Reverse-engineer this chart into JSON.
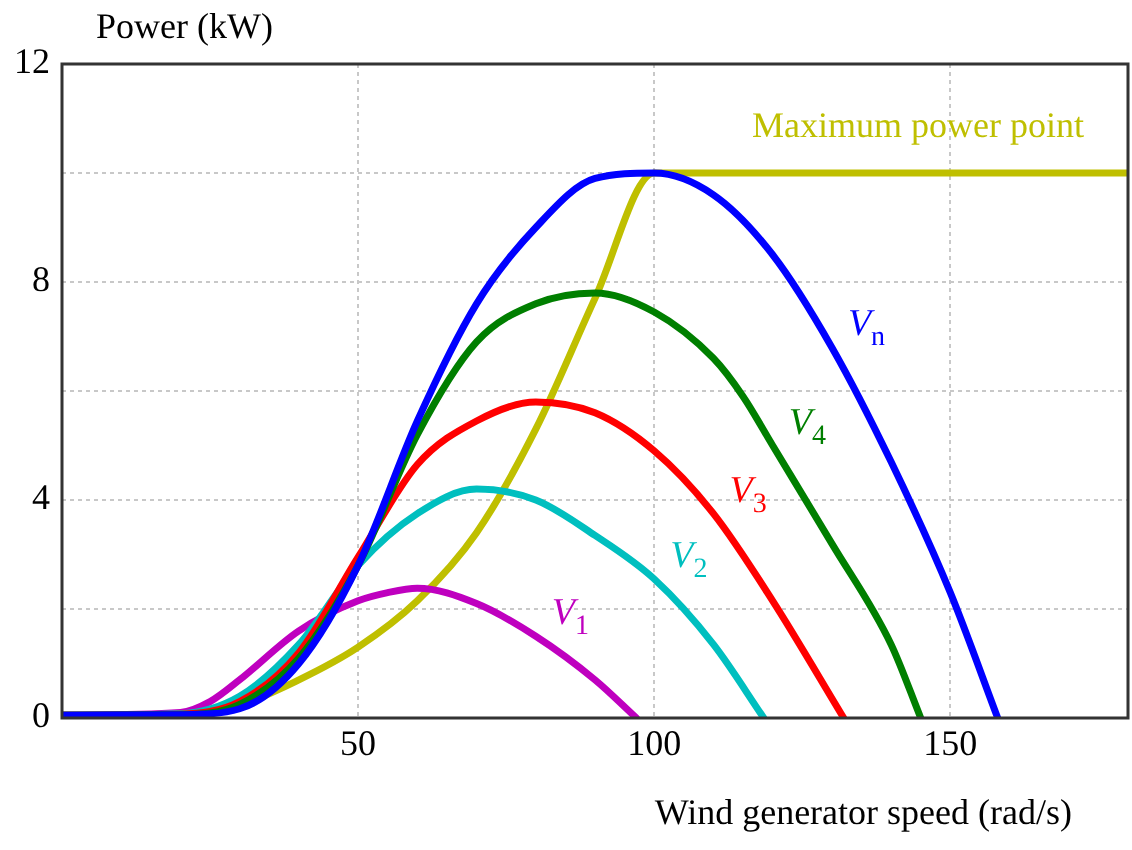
{
  "chart_data": {
    "type": "line",
    "xlabel": "Wind generator speed (rad/s)",
    "ylabel": "Power (kW)",
    "xlim": [
      0,
      180
    ],
    "ylim": [
      0,
      12
    ],
    "xticks": [
      {
        "value": 0,
        "label": null
      },
      50,
      100,
      150
    ],
    "yticks": [
      0,
      {
        "value": 2,
        "label": null
      },
      4,
      {
        "value": 6,
        "label": null
      },
      8,
      {
        "value": 10,
        "label": null
      },
      12
    ],
    "grid": true,
    "legend": false,
    "marker": "none",
    "line_style": "solid",
    "series": [
      {
        "name": "V$_{n}$",
        "color": "#0000ff",
        "x": [
          0,
          20,
          30,
          40,
          50,
          60,
          70,
          80,
          90,
          100,
          110,
          120,
          130,
          140,
          150,
          158
        ],
        "values": [
          0.05,
          0.06,
          0.17,
          1.0,
          2.8,
          5.45,
          7.6,
          9.0,
          9.9,
          10,
          9.6,
          8.5,
          6.8,
          4.7,
          2.3,
          0
        ]
      },
      {
        "name": "V$_{4}$",
        "color": "#007f00",
        "x": [
          0,
          20,
          30,
          40,
          50,
          60,
          70,
          80,
          90,
          100,
          110,
          115,
          120,
          130,
          140,
          145
        ],
        "values": [
          0.05,
          0.06,
          0.25,
          1.1,
          2.8,
          5.2,
          6.9,
          7.6,
          7.8,
          7.45,
          6.6,
          5.9,
          5.0,
          3.2,
          1.35,
          0
        ]
      },
      {
        "name": "V$_{3}$",
        "color": "#ff0000",
        "x": [
          0,
          20,
          30,
          40,
          50,
          60,
          70,
          80,
          90,
          100,
          110,
          120,
          132
        ],
        "values": [
          0.05,
          0.07,
          0.3,
          1.2,
          2.95,
          4.65,
          5.45,
          5.8,
          5.6,
          4.9,
          3.75,
          2.15,
          0
        ]
      },
      {
        "name": "V$_{2}$",
        "color": "#00bfbf",
        "x": [
          0,
          20,
          30,
          40,
          50,
          60,
          70,
          80,
          90,
          100,
          110,
          118.5
        ],
        "values": [
          0.05,
          0.08,
          0.4,
          1.35,
          2.8,
          3.75,
          4.2,
          4.0,
          3.35,
          2.55,
          1.35,
          0
        ]
      },
      {
        "name": "V$_{1}$",
        "color": "#bf00bf",
        "x": [
          0,
          20,
          25,
          30,
          40,
          50,
          55,
          60,
          70,
          80,
          90,
          97
        ],
        "values": [
          0.05,
          0.1,
          0.3,
          0.7,
          1.6,
          2.15,
          2.3,
          2.38,
          2.1,
          1.5,
          0.7,
          0
        ]
      },
      {
        "name": "Maximum power point",
        "color": "#bfbf00",
        "x": [
          0,
          20,
          30,
          40,
          50,
          60,
          70,
          80,
          90,
          100,
          180
        ],
        "values": [
          0.05,
          0.08,
          0.24,
          0.7,
          1.3,
          2.15,
          3.4,
          5.3,
          7.7,
          10,
          10
        ]
      }
    ]
  }
}
